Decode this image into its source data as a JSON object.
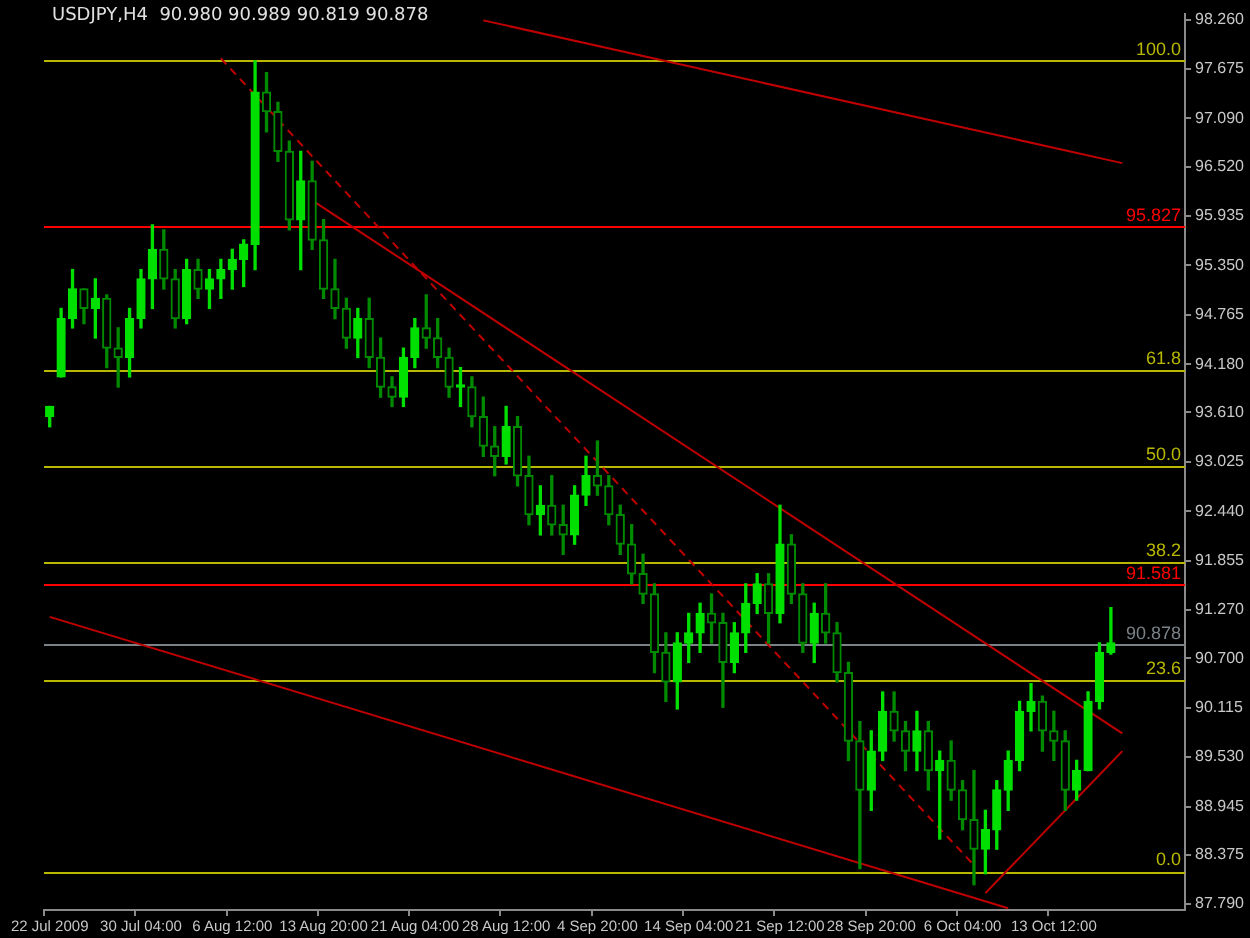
{
  "chart_data": {
    "type": "candlestick",
    "title": "USDJPY,H4  90.980 90.989 90.819 90.878",
    "colors": [
      "#00e000",
      "#00e000",
      "#00e000",
      "#008a00",
      "#00e000",
      "#008a00",
      "#008a00",
      "#00e000",
      "#00e000",
      "#00e000",
      "#008a00",
      "#008a00",
      "#00e000",
      "#008a00",
      "#00e000",
      "#00e000",
      "#00e000",
      "#00e000",
      "#00e000",
      "#008a00",
      "#008a00",
      "#008a00",
      "#00e000",
      "#008a00",
      "#008a00",
      "#008a00",
      "#008a00",
      "#00e000",
      "#008a00",
      "#008a00",
      "#008a00",
      "#00e000",
      "#00e000",
      "#008a00",
      "#008a00",
      "#008a00",
      "#00e000",
      "#008a00",
      "#008a00",
      "#008a00",
      "#00e000",
      "#008a00",
      "#008a00",
      "#00e000",
      "#008a00",
      "#008a00",
      "#00e000",
      "#00e000",
      "#008a00",
      "#008a00",
      "#008a00",
      "#008a00",
      "#008a00",
      "#008a00",
      "#008a00",
      "#00e000",
      "#00e000",
      "#00e000",
      "#008a00",
      "#008a00",
      "#00e000",
      "#00e000",
      "#00e000",
      "#008a00",
      "#00e000",
      "#008a00",
      "#008a00",
      "#00e000",
      "#008a00",
      "#008a00",
      "#008a00",
      "#008a00",
      "#00e000",
      "#00e000",
      "#008a00",
      "#008a00",
      "#00e000",
      "#008a00",
      "#00e000",
      "#008a00",
      "#008a00",
      "#008a00",
      "#00e000",
      "#00e000",
      "#00e000",
      "#00e000",
      "#00e000",
      "#008a00",
      "#008a00",
      "#008a00",
      "#00e000",
      "#00e000",
      "#00e000",
      "#00e000",
      null,
      null,
      null,
      null,
      null,
      null
    ],
    "categories": [
      "22 Jul 2009",
      null,
      null,
      null,
      null,
      null,
      null,
      null,
      "30 Jul 04:00",
      null,
      null,
      null,
      null,
      null,
      null,
      null,
      "6 Aug 12:00",
      null,
      null,
      null,
      null,
      null,
      null,
      null,
      "13 Aug 20:00",
      null,
      null,
      null,
      null,
      null,
      null,
      null,
      "21 Aug 04:00",
      null,
      null,
      null,
      null,
      null,
      null,
      null,
      "28 Aug 12:00",
      null,
      null,
      null,
      null,
      null,
      null,
      null,
      "4 Sep 20:00",
      null,
      null,
      null,
      null,
      null,
      null,
      null,
      "14 Sep 04:00",
      null,
      null,
      null,
      null,
      null,
      null,
      null,
      "21 Sep 12:00",
      null,
      null,
      null,
      null,
      null,
      null,
      null,
      "28 Sep 20:00",
      null,
      null,
      null,
      null,
      null,
      null,
      null,
      "6 Oct 04:00",
      null,
      null,
      null,
      null,
      null,
      null,
      null,
      "13 Oct 12:00",
      null,
      null,
      null,
      null,
      null,
      null,
      null,
      null,
      null,
      null,
      null
    ],
    "ohlc": [
      [
        93.56,
        93.68,
        93.44,
        93.68
      ],
      [
        94.03,
        94.84,
        94.03,
        94.72
      ],
      [
        94.72,
        95.3,
        94.61,
        95.07
      ],
      [
        95.07,
        95.07,
        94.66,
        94.84
      ],
      [
        94.84,
        95.19,
        94.49,
        94.96
      ],
      [
        94.96,
        95.0,
        94.14,
        94.37
      ],
      [
        94.37,
        94.61,
        93.91,
        94.26
      ],
      [
        94.26,
        94.84,
        94.03,
        94.72
      ],
      [
        94.72,
        95.3,
        94.61,
        95.19
      ],
      [
        95.19,
        95.83,
        94.84,
        95.54
      ],
      [
        95.54,
        95.77,
        95.07,
        95.19
      ],
      [
        95.19,
        95.3,
        94.61,
        94.72
      ],
      [
        94.72,
        95.42,
        94.66,
        95.3
      ],
      [
        95.3,
        95.42,
        94.96,
        95.07
      ],
      [
        95.07,
        95.3,
        94.84,
        95.19
      ],
      [
        95.19,
        95.42,
        94.96,
        95.3
      ],
      [
        95.3,
        95.54,
        95.07,
        95.42
      ],
      [
        95.42,
        95.65,
        95.1,
        95.6
      ],
      [
        95.6,
        97.77,
        95.3,
        97.4
      ],
      [
        97.4,
        97.63,
        96.93,
        97.17
      ],
      [
        97.17,
        97.28,
        96.58,
        96.7
      ],
      [
        96.7,
        96.82,
        95.77,
        95.89
      ],
      [
        95.89,
        96.7,
        95.3,
        96.35
      ],
      [
        96.35,
        96.58,
        95.54,
        95.65
      ],
      [
        95.65,
        95.89,
        94.96,
        95.07
      ],
      [
        95.07,
        95.42,
        94.72,
        94.84
      ],
      [
        94.84,
        94.96,
        94.37,
        94.49
      ],
      [
        94.49,
        94.84,
        94.26,
        94.72
      ],
      [
        94.72,
        94.96,
        94.14,
        94.26
      ],
      [
        94.26,
        94.49,
        93.79,
        93.91
      ],
      [
        93.91,
        94.03,
        93.68,
        93.79
      ],
      [
        93.79,
        94.37,
        93.68,
        94.26
      ],
      [
        94.26,
        94.72,
        94.14,
        94.61
      ],
      [
        94.61,
        95.0,
        94.37,
        94.49
      ],
      [
        94.49,
        94.72,
        94.14,
        94.26
      ],
      [
        94.26,
        94.37,
        93.79,
        93.91
      ],
      [
        93.91,
        94.14,
        93.68,
        93.91
      ],
      [
        93.91,
        94.03,
        93.44,
        93.56
      ],
      [
        93.56,
        93.79,
        93.09,
        93.21
      ],
      [
        93.21,
        93.44,
        92.86,
        93.09
      ],
      [
        93.09,
        93.68,
        93.0,
        93.44
      ],
      [
        93.44,
        93.56,
        92.74,
        92.86
      ],
      [
        92.86,
        93.09,
        92.28,
        92.4
      ],
      [
        92.4,
        92.74,
        92.16,
        92.51
      ],
      [
        92.51,
        92.86,
        92.16,
        92.28
      ],
      [
        92.28,
        92.51,
        91.93,
        92.16
      ],
      [
        92.16,
        92.74,
        92.05,
        92.63
      ],
      [
        92.63,
        93.09,
        92.51,
        92.86
      ],
      [
        92.86,
        93.27,
        92.63,
        92.74
      ],
      [
        92.74,
        92.86,
        92.28,
        92.4
      ],
      [
        92.4,
        92.51,
        91.93,
        92.05
      ],
      [
        92.05,
        92.28,
        91.58,
        91.7
      ],
      [
        91.7,
        91.93,
        91.35,
        91.46
      ],
      [
        91.46,
        91.58,
        90.53,
        90.77
      ],
      [
        90.77,
        91.0,
        90.19,
        90.42
      ],
      [
        90.42,
        91.0,
        90.1,
        90.88
      ],
      [
        90.88,
        91.23,
        90.65,
        91.0
      ],
      [
        91.0,
        91.35,
        90.77,
        91.23
      ],
      [
        91.23,
        91.46,
        90.88,
        91.12
      ],
      [
        91.12,
        91.23,
        90.12,
        90.65
      ],
      [
        90.65,
        91.12,
        90.53,
        91.0
      ],
      [
        91.0,
        91.58,
        90.77,
        91.35
      ],
      [
        91.35,
        91.7,
        91.23,
        91.58
      ],
      [
        91.58,
        91.7,
        90.88,
        91.23
      ],
      [
        91.23,
        92.51,
        91.12,
        92.05
      ],
      [
        92.05,
        92.16,
        91.35,
        91.46
      ],
      [
        91.46,
        91.58,
        90.77,
        90.88
      ],
      [
        90.88,
        91.35,
        90.65,
        91.23
      ],
      [
        91.23,
        91.58,
        90.88,
        91.0
      ],
      [
        91.0,
        91.12,
        90.42,
        90.53
      ],
      [
        90.53,
        90.65,
        89.49,
        89.72
      ],
      [
        89.72,
        89.95,
        88.21,
        89.14
      ],
      [
        89.14,
        89.84,
        88.9,
        89.6
      ],
      [
        89.6,
        90.3,
        89.49,
        90.07
      ],
      [
        90.07,
        90.3,
        89.72,
        89.84
      ],
      [
        89.84,
        89.95,
        89.37,
        89.6
      ],
      [
        89.6,
        90.07,
        89.37,
        89.84
      ],
      [
        89.84,
        89.95,
        89.14,
        89.37
      ],
      [
        89.37,
        89.6,
        88.56,
        89.49
      ],
      [
        89.49,
        89.72,
        89.02,
        89.14
      ],
      [
        89.14,
        89.25,
        88.67,
        88.79
      ],
      [
        88.79,
        89.37,
        88.02,
        88.44
      ],
      [
        88.44,
        88.9,
        88.15,
        88.67
      ],
      [
        88.67,
        89.25,
        88.44,
        89.14
      ],
      [
        89.14,
        89.6,
        88.9,
        89.49
      ],
      [
        89.49,
        90.19,
        89.37,
        90.07
      ],
      [
        90.07,
        90.4,
        89.84,
        90.19
      ],
      [
        90.19,
        90.25,
        89.6,
        89.84
      ],
      [
        89.84,
        90.07,
        89.49,
        89.72
      ],
      [
        89.72,
        89.84,
        88.9,
        89.14
      ],
      [
        89.14,
        89.49,
        89.02,
        89.37
      ],
      [
        89.37,
        90.3,
        89.37,
        90.19
      ],
      [
        90.19,
        90.88,
        90.1,
        90.77
      ],
      [
        90.77,
        91.3,
        90.75,
        90.88
      ],
      null,
      null,
      null,
      null,
      null,
      null
    ],
    "series": [
      {
        "type": "line",
        "color": "#c00000",
        "values": [
          null,
          null,
          null,
          null,
          null,
          null,
          null,
          null,
          null,
          null,
          null,
          null,
          null,
          null,
          null,
          null,
          null,
          null,
          null,
          null,
          null,
          null,
          null,
          null,
          null,
          null,
          null,
          null,
          null,
          null,
          null,
          null,
          null,
          null,
          null,
          null,
          null,
          null,
          98.25,
          null,
          null,
          null,
          null,
          null,
          null,
          null,
          null,
          null,
          null,
          null,
          null,
          null,
          null,
          null,
          null,
          null,
          null,
          null,
          null,
          null,
          null,
          null,
          null,
          null,
          null,
          null,
          null,
          null,
          null,
          null,
          null,
          null,
          null,
          null,
          null,
          null,
          null,
          null,
          null,
          null,
          null,
          null,
          null,
          null,
          null,
          null,
          null,
          null,
          null,
          null,
          null,
          null,
          null,
          null,
          96.56,
          null,
          null,
          null,
          null,
          null
        ]
      },
      {
        "type": "line",
        "color": "#c00000",
        "values": [
          null,
          null,
          null,
          null,
          null,
          null,
          null,
          null,
          null,
          null,
          null,
          null,
          null,
          null,
          null,
          null,
          null,
          null,
          null,
          null,
          null,
          null,
          null,
          96.12,
          null,
          null,
          null,
          null,
          null,
          null,
          null,
          null,
          null,
          null,
          null,
          null,
          null,
          null,
          null,
          null,
          null,
          null,
          null,
          null,
          null,
          null,
          null,
          null,
          null,
          null,
          null,
          null,
          null,
          null,
          null,
          null,
          null,
          null,
          null,
          null,
          null,
          null,
          null,
          null,
          null,
          null,
          null,
          null,
          null,
          null,
          null,
          null,
          null,
          null,
          null,
          null,
          null,
          null,
          null,
          null,
          null,
          null,
          null,
          null,
          null,
          null,
          null,
          null,
          null,
          null,
          null,
          null,
          null,
          null,
          89.81,
          null,
          null,
          null,
          null,
          null
        ]
      },
      {
        "type": "line",
        "color": "#c00000",
        "line_style": "dashed",
        "values": [
          null,
          null,
          null,
          null,
          null,
          null,
          null,
          null,
          null,
          null,
          null,
          null,
          null,
          null,
          null,
          97.8,
          null,
          null,
          null,
          null,
          null,
          null,
          null,
          null,
          null,
          null,
          null,
          null,
          null,
          null,
          null,
          null,
          null,
          null,
          null,
          null,
          null,
          null,
          null,
          null,
          null,
          null,
          null,
          null,
          null,
          null,
          null,
          null,
          null,
          null,
          null,
          null,
          null,
          null,
          null,
          null,
          null,
          null,
          null,
          null,
          null,
          null,
          null,
          null,
          null,
          null,
          null,
          null,
          null,
          null,
          null,
          null,
          null,
          null,
          null,
          null,
          null,
          null,
          null,
          null,
          null,
          88.25,
          null,
          null,
          null,
          null,
          null,
          null,
          null,
          null,
          null,
          null,
          null,
          null,
          null,
          null,
          null,
          null,
          null,
          null
        ]
      },
      {
        "type": "line",
        "color": "#c00000",
        "values": [
          91.19,
          null,
          null,
          null,
          null,
          null,
          null,
          null,
          null,
          null,
          null,
          null,
          null,
          null,
          null,
          null,
          null,
          null,
          null,
          null,
          null,
          null,
          null,
          null,
          null,
          null,
          null,
          null,
          null,
          null,
          null,
          null,
          null,
          null,
          null,
          null,
          null,
          null,
          null,
          null,
          null,
          null,
          null,
          null,
          null,
          null,
          null,
          null,
          null,
          null,
          null,
          null,
          null,
          null,
          null,
          null,
          null,
          null,
          null,
          null,
          null,
          null,
          null,
          null,
          null,
          null,
          null,
          null,
          null,
          null,
          null,
          null,
          null,
          null,
          null,
          null,
          null,
          null,
          null,
          null,
          null,
          null,
          null,
          null,
          87.74,
          null,
          null,
          null,
          null,
          null,
          null,
          null,
          null,
          null,
          null,
          null,
          null,
          null,
          null,
          null
        ]
      },
      {
        "type": "line",
        "color": "#c00000",
        "values": [
          null,
          null,
          null,
          null,
          null,
          null,
          null,
          null,
          null,
          null,
          null,
          null,
          null,
          null,
          null,
          null,
          null,
          null,
          null,
          null,
          null,
          null,
          null,
          null,
          null,
          null,
          null,
          null,
          null,
          null,
          null,
          null,
          null,
          null,
          null,
          null,
          null,
          null,
          null,
          null,
          null,
          null,
          null,
          null,
          null,
          null,
          null,
          null,
          null,
          null,
          null,
          null,
          null,
          null,
          null,
          null,
          null,
          null,
          null,
          null,
          null,
          null,
          null,
          null,
          null,
          null,
          null,
          null,
          null,
          null,
          null,
          null,
          null,
          null,
          null,
          null,
          null,
          null,
          null,
          null,
          null,
          null,
          87.92,
          null,
          null,
          null,
          null,
          null,
          null,
          null,
          null,
          null,
          null,
          null,
          89.6,
          null,
          null,
          null,
          null,
          null
        ]
      }
    ],
    "marker": "none",
    "ylim": [
      87.72,
      98.33
    ],
    "yticks": [
      {
        "value": 98.26,
        "label": "98.260"
      },
      {
        "value": 97.675,
        "label": "97.675"
      },
      {
        "value": 97.09,
        "label": "97.090"
      },
      {
        "value": 96.52,
        "label": "96.520"
      },
      {
        "value": 95.935,
        "label": "95.935"
      },
      {
        "value": 95.35,
        "label": "95.350"
      },
      {
        "value": 94.765,
        "label": "94.765"
      },
      {
        "value": 94.18,
        "label": "94.180"
      },
      {
        "value": 93.61,
        "label": "93.610"
      },
      {
        "value": 93.025,
        "label": "93.025"
      },
      {
        "value": 92.44,
        "label": "92.440"
      },
      {
        "value": 91.855,
        "label": "91.855"
      },
      {
        "value": 91.27,
        "label": "91.270"
      },
      {
        "value": 90.7,
        "label": "90.700"
      },
      {
        "value": 90.115,
        "label": "90.115"
      },
      {
        "value": 89.53,
        "label": "89.530"
      },
      {
        "value": 88.945,
        "label": "88.945"
      },
      {
        "value": 88.375,
        "label": "88.375"
      },
      {
        "value": 87.79,
        "label": "87.790"
      }
    ],
    "ref_lines": [
      {
        "axis": "y",
        "value": 97.77,
        "color": "#b8b800"
      },
      {
        "axis": "y",
        "value": 94.11,
        "color": "#b8b800"
      },
      {
        "axis": "y",
        "value": 92.98,
        "color": "#b8b800"
      },
      {
        "axis": "y",
        "value": 91.84,
        "color": "#b8b800"
      },
      {
        "axis": "y",
        "value": 90.44,
        "color": "#b8b800"
      },
      {
        "axis": "y",
        "value": 88.18,
        "color": "#b8b800"
      },
      {
        "axis": "y",
        "value": 95.827,
        "label": "95.827",
        "color": "#ff0000"
      },
      {
        "axis": "y",
        "value": 91.581,
        "label": "91.581",
        "color": "#ff0000"
      },
      {
        "axis": "y",
        "value": 90.878,
        "label": "90.878",
        "color": "#7a8288"
      }
    ],
    "annotations": [
      {
        "text": "100.0",
        "y": 97.77
      },
      {
        "text": "61.8",
        "y": 94.11
      },
      {
        "text": "50.0",
        "y": 92.98
      },
      {
        "text": "38.2",
        "y": 91.84
      },
      {
        "text": "23.6",
        "y": 90.44
      },
      {
        "text": "0.0",
        "y": 88.18
      }
    ],
    "grid": false,
    "legend": false
  }
}
